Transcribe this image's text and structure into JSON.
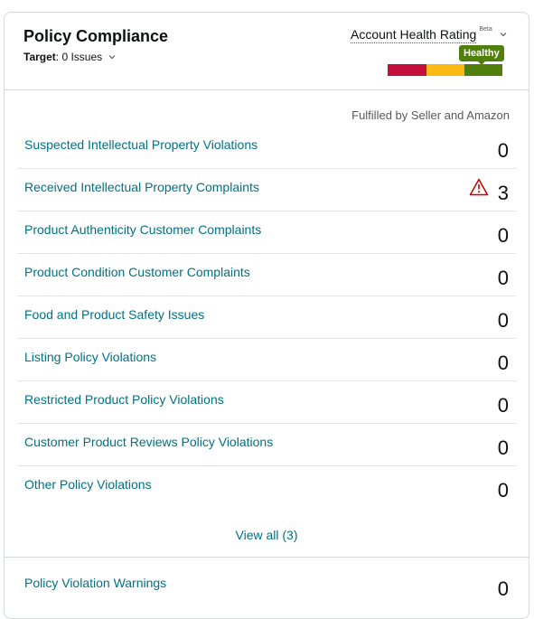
{
  "header": {
    "title": "Policy Compliance",
    "target_label": "Target",
    "target_value": ": 0 Issues",
    "rating_label": "Account Health Rating",
    "beta": "Beta",
    "status": "Healthy",
    "colors": {
      "red": "#c40f3a",
      "yellow": "#fdb913",
      "green": "#507f0c"
    }
  },
  "column_label": "Fulfilled by Seller and Amazon",
  "rows": [
    {
      "label": "Suspected Intellectual Property Violations",
      "value": "0"
    },
    {
      "label": "Received Intellectual Property Complaints",
      "value": "3",
      "icon": "warning-icon"
    },
    {
      "label": "Product Authenticity Customer Complaints",
      "value": "0"
    },
    {
      "label": "Product Condition Customer Complaints",
      "value": "0"
    },
    {
      "label": "Food and Product Safety Issues",
      "value": "0"
    },
    {
      "label": "Listing Policy Violations",
      "value": "0"
    },
    {
      "label": "Restricted Product Policy Violations",
      "value": "0"
    },
    {
      "label": "Customer Product Reviews Policy Violations",
      "value": "0"
    },
    {
      "label": "Other Policy Violations",
      "value": "0"
    }
  ],
  "view_all": "View all (3)",
  "footer": {
    "label": "Policy Violation Warnings",
    "value": "0"
  }
}
